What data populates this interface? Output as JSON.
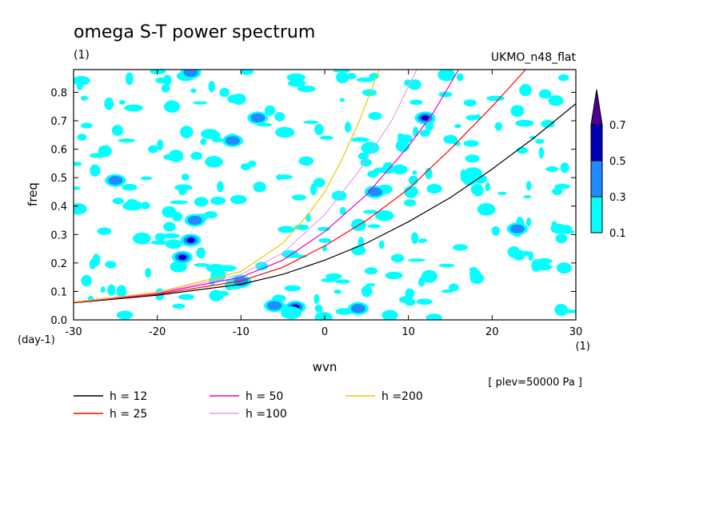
{
  "chart_data": {
    "type": "contour",
    "title": "omega S-T power spectrum",
    "subtitle": "(1)",
    "model": "UKMO_n48_flat",
    "xlabel": "wvn",
    "ylabel": "freq",
    "x_unit": "(1)",
    "y_unit": "(day-1)",
    "note": "[ plev=50000 Pa ]",
    "xlim": [
      -30,
      30
    ],
    "ylim": [
      0,
      0.88
    ],
    "xticks": [
      -30,
      -20,
      -10,
      0,
      10,
      20,
      30
    ],
    "xtick_labels": [
      "-30",
      "-20",
      "-10",
      "0",
      "10",
      "20",
      "30"
    ],
    "yticks": [
      0,
      0.1,
      0.2,
      0.3,
      0.4,
      0.5,
      0.6,
      0.7,
      0.8
    ],
    "ytick_labels": [
      "0.0",
      "0.1",
      "0.2",
      "0.3",
      "0.4",
      "0.5",
      "0.6",
      "0.7",
      "0.8"
    ],
    "colorbar": {
      "levels": [
        "0.1",
        "0.3",
        "0.5",
        "0.7"
      ],
      "colors": [
        "#00ffff",
        "#1e8cff",
        "#0000b4",
        "#4b0096"
      ]
    },
    "series": [
      {
        "name": "h = 12",
        "color": "#000000",
        "x": [
          -30,
          -20,
          -10,
          -5,
          0,
          5,
          10,
          15,
          20,
          25,
          30
        ],
        "y": [
          0.06,
          0.087,
          0.125,
          0.16,
          0.21,
          0.27,
          0.345,
          0.43,
          0.53,
          0.64,
          0.76
        ]
      },
      {
        "name": "h = 25",
        "color": "#ff0000",
        "x": [
          -30,
          -20,
          -10,
          -5,
          0,
          5,
          10,
          15,
          20,
          24
        ],
        "y": [
          0.061,
          0.09,
          0.137,
          0.185,
          0.26,
          0.35,
          0.46,
          0.6,
          0.75,
          0.88
        ]
      },
      {
        "name": "h = 50",
        "color": "#e600c8",
        "x": [
          -30,
          -20,
          -10,
          -5,
          0,
          5,
          10,
          13,
          16
        ],
        "y": [
          0.062,
          0.093,
          0.15,
          0.21,
          0.31,
          0.44,
          0.61,
          0.73,
          0.88
        ]
      },
      {
        "name": "h =100",
        "color": "#e6a0e6",
        "x": [
          -30,
          -20,
          -10,
          -5,
          0,
          4,
          8,
          11
        ],
        "y": [
          0.063,
          0.095,
          0.16,
          0.235,
          0.37,
          0.52,
          0.7,
          0.88
        ]
      },
      {
        "name": "h =200",
        "color": "#f0c800",
        "x": [
          -30,
          -20,
          -10,
          -5,
          -2,
          0,
          2,
          4,
          6.5
        ],
        "y": [
          0.063,
          0.097,
          0.17,
          0.27,
          0.37,
          0.45,
          0.56,
          0.69,
          0.88
        ]
      }
    ],
    "blobs": [
      {
        "x": -3.5,
        "y": 0.045,
        "level": 2
      },
      {
        "x": -6,
        "y": 0.05,
        "level": 1
      },
      {
        "x": -4,
        "y": 0.025,
        "level": 0
      },
      {
        "x": 4,
        "y": 0.04,
        "level": 1
      },
      {
        "x": -16,
        "y": 0.28,
        "level": 2
      },
      {
        "x": -17,
        "y": 0.22,
        "level": 2
      },
      {
        "x": -25,
        "y": 0.49,
        "level": 1
      },
      {
        "x": -16,
        "y": 0.87,
        "level": 1
      },
      {
        "x": -11,
        "y": 0.63,
        "level": 1
      },
      {
        "x": -8,
        "y": 0.71,
        "level": 1
      },
      {
        "x": 12,
        "y": 0.71,
        "level": 2
      },
      {
        "x": 23,
        "y": 0.32,
        "level": 1
      },
      {
        "x": -10,
        "y": 0.135,
        "level": 1
      },
      {
        "x": -15.5,
        "y": 0.35,
        "level": 1
      },
      {
        "x": 6,
        "y": 0.45,
        "level": 1
      }
    ]
  }
}
